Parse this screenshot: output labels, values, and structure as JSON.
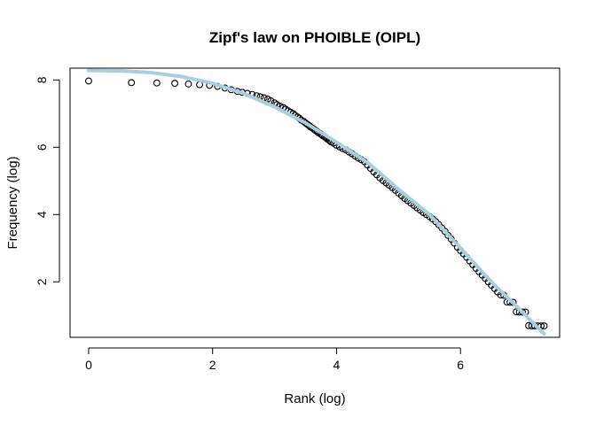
{
  "chart_data": {
    "type": "scatter",
    "title": "Zipf's law on PHOIBLE (OIPL)",
    "xlabel": "Rank (log)",
    "ylabel": "Frequency (log)",
    "xlim": [
      -0.3,
      7.6
    ],
    "ylim": [
      0.35,
      8.35
    ],
    "x_ticks": [
      0,
      2,
      4,
      6
    ],
    "y_ticks": [
      2,
      4,
      6,
      8
    ],
    "grid": false,
    "legend": "none",
    "point_style": "open-circle",
    "point_color": "#000000",
    "fit_color": "#a6cfe0",
    "series": [
      {
        "points": [
          [
            0.0,
            7.97
          ],
          [
            0.69,
            7.92
          ],
          [
            1.1,
            7.91
          ],
          [
            1.39,
            7.9
          ],
          [
            1.61,
            7.88
          ],
          [
            1.79,
            7.86
          ],
          [
            1.95,
            7.84
          ],
          [
            2.08,
            7.81
          ],
          [
            2.2,
            7.76
          ],
          [
            2.3,
            7.71
          ],
          [
            2.4,
            7.66
          ],
          [
            2.48,
            7.63
          ],
          [
            2.56,
            7.6
          ],
          [
            2.64,
            7.57
          ],
          [
            2.71,
            7.53
          ],
          [
            2.77,
            7.5
          ],
          [
            2.83,
            7.47
          ],
          [
            2.89,
            7.43
          ],
          [
            2.94,
            7.38
          ],
          [
            3.0,
            7.32
          ],
          [
            3.04,
            7.27
          ],
          [
            3.09,
            7.22
          ],
          [
            3.14,
            7.18
          ],
          [
            3.18,
            7.13
          ],
          [
            3.22,
            7.08
          ],
          [
            3.26,
            7.04
          ],
          [
            3.3,
            7.0
          ],
          [
            3.33,
            6.95
          ],
          [
            3.37,
            6.9
          ],
          [
            3.4,
            6.86
          ],
          [
            3.43,
            6.81
          ],
          [
            3.47,
            6.77
          ],
          [
            3.5,
            6.72
          ],
          [
            3.53,
            6.68
          ],
          [
            3.56,
            6.64
          ],
          [
            3.58,
            6.6
          ],
          [
            3.61,
            6.57
          ],
          [
            3.64,
            6.53
          ],
          [
            3.66,
            6.5
          ],
          [
            3.69,
            6.46
          ],
          [
            3.71,
            6.43
          ],
          [
            3.74,
            6.4
          ],
          [
            3.76,
            6.37
          ],
          [
            3.78,
            6.34
          ],
          [
            3.81,
            6.31
          ],
          [
            3.83,
            6.28
          ],
          [
            3.85,
            6.25
          ],
          [
            3.87,
            6.22
          ],
          [
            3.89,
            6.19
          ],
          [
            3.91,
            6.16
          ],
          [
            3.95,
            6.12
          ],
          [
            4.0,
            6.06
          ],
          [
            4.05,
            6.01
          ],
          [
            4.1,
            5.96
          ],
          [
            4.15,
            5.92
          ],
          [
            4.2,
            5.86
          ],
          [
            4.25,
            5.81
          ],
          [
            4.3,
            5.74
          ],
          [
            4.35,
            5.68
          ],
          [
            4.4,
            5.63
          ],
          [
            4.45,
            5.57
          ],
          [
            4.5,
            5.47
          ],
          [
            4.55,
            5.37
          ],
          [
            4.6,
            5.27
          ],
          [
            4.65,
            5.18
          ],
          [
            4.7,
            5.09
          ],
          [
            4.75,
            5.01
          ],
          [
            4.8,
            4.94
          ],
          [
            4.85,
            4.87
          ],
          [
            4.9,
            4.8
          ],
          [
            4.95,
            4.72
          ],
          [
            5.0,
            4.64
          ],
          [
            5.05,
            4.56
          ],
          [
            5.1,
            4.48
          ],
          [
            5.15,
            4.41
          ],
          [
            5.2,
            4.34
          ],
          [
            5.25,
            4.27
          ],
          [
            5.3,
            4.2
          ],
          [
            5.35,
            4.13
          ],
          [
            5.4,
            4.06
          ],
          [
            5.45,
            4.0
          ],
          [
            5.5,
            3.94
          ],
          [
            5.55,
            3.87
          ],
          [
            5.6,
            3.79
          ],
          [
            5.65,
            3.7
          ],
          [
            5.7,
            3.6
          ],
          [
            5.75,
            3.5
          ],
          [
            5.8,
            3.38
          ],
          [
            5.85,
            3.27
          ],
          [
            5.9,
            3.15
          ],
          [
            5.95,
            3.03
          ],
          [
            6.0,
            2.93
          ],
          [
            6.05,
            2.83
          ],
          [
            6.1,
            2.73
          ],
          [
            6.15,
            2.62
          ],
          [
            6.2,
            2.51
          ],
          [
            6.25,
            2.4
          ],
          [
            6.3,
            2.3
          ],
          [
            6.35,
            2.2
          ],
          [
            6.4,
            2.1
          ],
          [
            6.45,
            2.0
          ],
          [
            6.5,
            1.9
          ],
          [
            6.55,
            1.8
          ],
          [
            6.6,
            1.7
          ],
          [
            6.65,
            1.61
          ],
          [
            6.7,
            1.6
          ],
          [
            6.75,
            1.4
          ],
          [
            6.8,
            1.39
          ],
          [
            6.85,
            1.39
          ],
          [
            6.9,
            1.11
          ],
          [
            6.95,
            1.1
          ],
          [
            7.0,
            1.1
          ],
          [
            7.05,
            1.1
          ],
          [
            7.1,
            0.7
          ],
          [
            7.15,
            0.69
          ],
          [
            7.2,
            0.69
          ],
          [
            7.25,
            0.69
          ],
          [
            7.3,
            0.69
          ],
          [
            7.35,
            0.69
          ]
        ]
      }
    ],
    "fit_line": {
      "x": [
        0.0,
        0.5,
        1.0,
        1.5,
        2.0,
        2.5,
        3.0,
        3.5,
        4.0,
        4.5,
        5.0,
        5.5,
        6.0,
        6.5,
        7.0,
        7.35
      ],
      "y": [
        8.28,
        8.27,
        8.22,
        8.1,
        7.9,
        7.6,
        7.2,
        6.72,
        6.15,
        5.55,
        4.75,
        4.0,
        3.0,
        2.0,
        1.1,
        0.45
      ]
    }
  }
}
